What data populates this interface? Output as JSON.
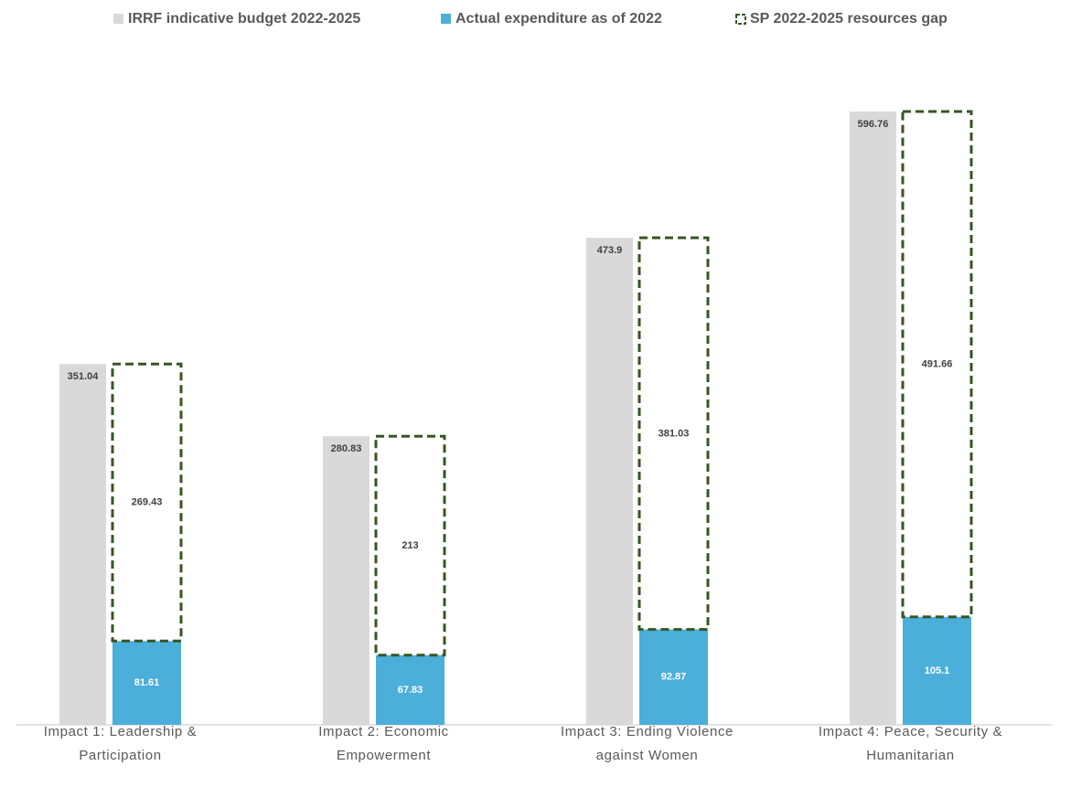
{
  "chart_data": {
    "type": "bar",
    "categories": [
      "Impact 1: Leadership & Participation",
      "Impact 2: Economic Empowerment",
      "Impact 3: Ending Violence against Women",
      "Impact 4: Peace, Security & Humanitarian"
    ],
    "series": [
      {
        "name": "IRRF indicative budget 2022-2025",
        "color": "#d9d9d9",
        "values": [
          351.04,
          280.83,
          473.9,
          596.76
        ]
      },
      {
        "name": "Actual expenditure as of 2022",
        "color": "#4bafd9",
        "values": [
          81.61,
          67.83,
          92.87,
          105.1
        ],
        "stack": "spent"
      },
      {
        "name": "SP 2022-2025 resources gap",
        "color": "#375623",
        "style": "dashed",
        "values": [
          269.43,
          213,
          381.03,
          491.66
        ],
        "stack": "spent"
      }
    ],
    "legend": "top"
  }
}
